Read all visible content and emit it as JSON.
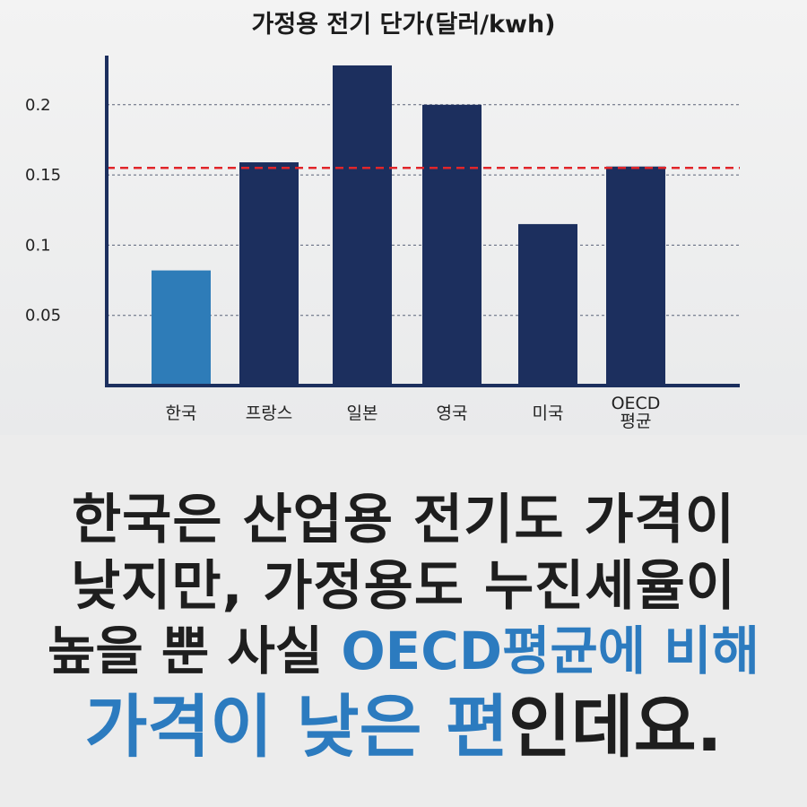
{
  "colors": {
    "highlight_bar": "#2e7cb8",
    "bar": "#1c2f5e",
    "axis": "#1c2f5e",
    "grid": "#5a6378",
    "reference_line": "#e0262a",
    "accent_text": "#2c7bbf",
    "caption_text": "#1e1e1e"
  },
  "chart_data": {
    "type": "bar",
    "title": "가정용 전기 단가(달러/kwh)",
    "xlabel": "",
    "ylabel": "",
    "categories": [
      [
        "한국"
      ],
      [
        "프랑스"
      ],
      [
        "일본"
      ],
      [
        "영국"
      ],
      [
        "미국"
      ],
      [
        "OECD",
        "평균"
      ]
    ],
    "values": [
      0.082,
      0.159,
      0.228,
      0.2,
      0.115,
      0.156
    ],
    "highlight_index": 0,
    "ylim": [
      0,
      0.235
    ],
    "yticks": [
      {
        "value": 0.05,
        "label": "0.05"
      },
      {
        "value": 0.1,
        "label": "0.1"
      },
      {
        "value": 0.15,
        "label": "0.15"
      },
      {
        "value": 0.2,
        "label": "0.2"
      }
    ],
    "grid": "dashed horizontal",
    "reference_line": {
      "value": 0.155,
      "style": "dashed",
      "color": "#e0262a"
    }
  },
  "caption": {
    "line1": "한국은 산업용 전기도 가격이",
    "line2": "낮지만, 가정용도 누진세율이",
    "line3_plain": "높을 뿐 사실 ",
    "line3_accent": "OECD평균에 비해",
    "line4_accent": "가격이 낮은 편",
    "line4_plain": "인데요."
  }
}
